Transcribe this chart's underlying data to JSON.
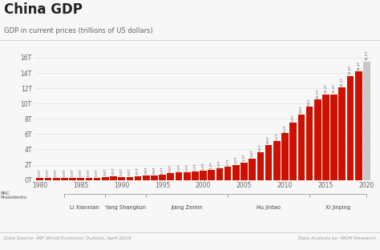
{
  "title": "China GDP",
  "subtitle": "GDP in current prices (trillions of US dollars)",
  "years": [
    1980,
    1981,
    1982,
    1983,
    1984,
    1985,
    1986,
    1987,
    1988,
    1989,
    1990,
    1991,
    1992,
    1993,
    1994,
    1995,
    1996,
    1997,
    1998,
    1999,
    2000,
    2001,
    2002,
    2003,
    2004,
    2005,
    2006,
    2007,
    2008,
    2009,
    2010,
    2011,
    2012,
    2013,
    2014,
    2015,
    2016,
    2017,
    2018,
    2019,
    2020
  ],
  "values": [
    0.3,
    0.3,
    0.3,
    0.3,
    0.3,
    0.3,
    0.3,
    0.3,
    0.4,
    0.5,
    0.4,
    0.4,
    0.5,
    0.6,
    0.6,
    0.7,
    0.9,
    1.0,
    1.0,
    1.1,
    1.2,
    1.3,
    1.5,
    1.7,
    2.0,
    2.3,
    2.8,
    3.6,
    4.6,
    5.1,
    6.1,
    7.5,
    8.6,
    9.6,
    10.5,
    11.2,
    11.2,
    12.1,
    13.6,
    14.2,
    15.5
  ],
  "bar_color": "#cc1100",
  "last_bar_color": "#c8c8c8",
  "yticks": [
    0,
    2,
    4,
    6,
    8,
    10,
    12,
    14,
    16
  ],
  "ytick_labels": [
    "0T",
    "2T",
    "4T",
    "6T",
    "8T",
    "10T",
    "12T",
    "14T",
    "16T"
  ],
  "xtick_years": [
    1980,
    1985,
    1990,
    1995,
    2000,
    2005,
    2010,
    2015,
    2020
  ],
  "president_configs": [
    {
      "name": "Li Xiannian",
      "start_yr": 1983,
      "end_yr": 1988
    },
    {
      "name": "Yang Shangkun",
      "start_yr": 1988,
      "end_yr": 1993
    },
    {
      "name": "Jiang Zemin",
      "start_yr": 1993,
      "end_yr": 2003
    },
    {
      "name": "Hu Jintao",
      "start_yr": 2003,
      "end_yr": 2013
    },
    {
      "name": "Xi Jinping",
      "start_yr": 2013,
      "end_yr": 2020
    }
  ],
  "prc_label": "PRC\nPresidents:",
  "source_left": "Data Source: IMF World Economic Outlook, April 2019",
  "source_right": "Data Analysis by: MGM Research",
  "background_color": "#f7f7f7",
  "grid_color": "#e0e0e0",
  "title_color": "#222222",
  "subtitle_color": "#666666",
  "label_color": "#444444",
  "tick_color": "#666666",
  "footer_color": "#999999",
  "president_line_color": "#aaaaaa",
  "ylim": [
    0,
    17
  ]
}
